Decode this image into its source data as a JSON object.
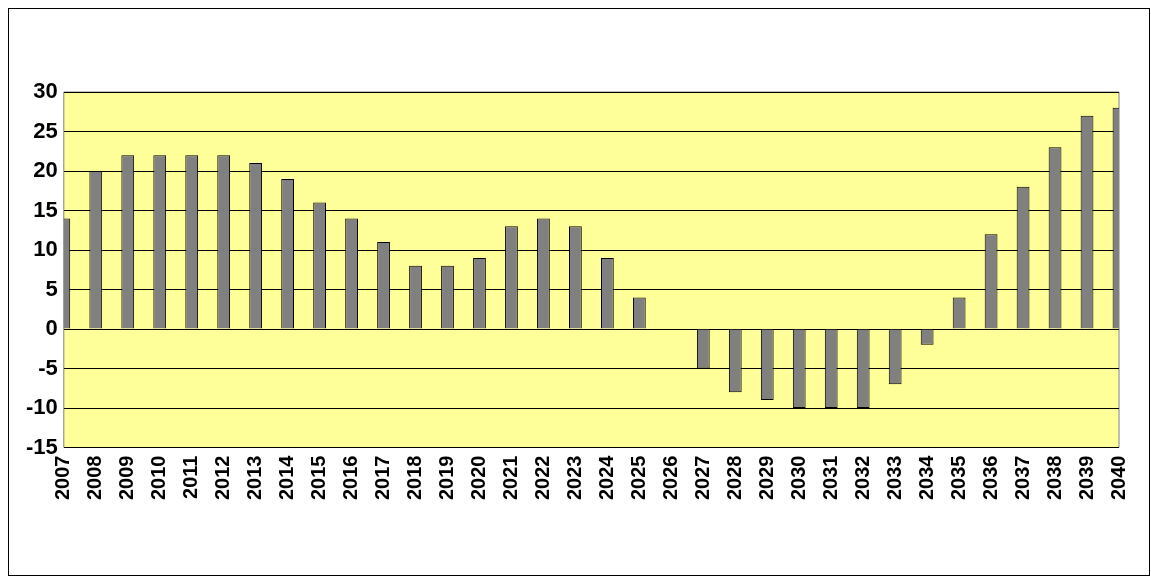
{
  "chart_data": {
    "type": "bar",
    "categories": [
      "2007",
      "2008",
      "2009",
      "2010",
      "2011",
      "2012",
      "2013",
      "2014",
      "2015",
      "2016",
      "2017",
      "2018",
      "2019",
      "2020",
      "2021",
      "2022",
      "2023",
      "2024",
      "2025",
      "2026",
      "2027",
      "2028",
      "2029",
      "2030",
      "2031",
      "2032",
      "2033",
      "2034",
      "2035",
      "2036",
      "2037",
      "2038",
      "2039",
      "2040"
    ],
    "values": [
      14,
      20,
      22,
      22,
      22,
      22,
      21,
      19,
      16,
      14,
      11,
      8,
      8,
      9,
      13,
      14,
      13,
      9,
      4,
      0,
      -5,
      -8,
      -9,
      -10,
      -10,
      -10,
      -7,
      -2,
      4,
      12,
      18,
      23,
      27,
      28
    ],
    "color": "#808080",
    "ylim": [
      -15,
      30
    ],
    "yticks": [
      -15,
      -10,
      -5,
      0,
      5,
      10,
      15,
      20,
      25,
      30
    ],
    "grid": "y",
    "legend": false
  }
}
